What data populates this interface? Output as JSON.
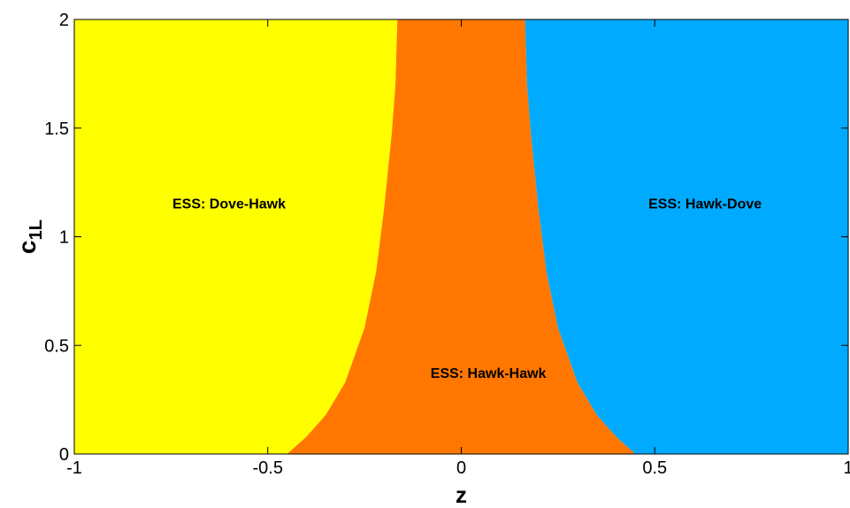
{
  "chart_data": {
    "type": "area",
    "title": "",
    "xlabel": "z",
    "ylabel_main": "c",
    "ylabel_sub": "1L",
    "xlim": [
      -1,
      1
    ],
    "ylim": [
      0,
      2
    ],
    "grid": false,
    "x_ticks": [
      -1,
      -0.5,
      0,
      0.5,
      1
    ],
    "x_tick_labels": [
      "-1",
      "-0.5",
      "0",
      "0.5",
      "1"
    ],
    "y_ticks": [
      0,
      0.5,
      1,
      1.5,
      2
    ],
    "y_tick_labels": [
      "0",
      "0.5",
      "1",
      "1.5",
      "2"
    ],
    "regions": [
      {
        "label": "ESS: Dove-Hawk",
        "color": "#ffff00",
        "label_at": [
          -0.6,
          1.13
        ]
      },
      {
        "label": "ESS: Hawk-Hawk",
        "color": "#ff7700",
        "label_at": [
          0.07,
          0.35
        ]
      },
      {
        "label": "ESS: Hawk-Dove",
        "color": "#00aaff",
        "label_at": [
          0.63,
          1.13
        ]
      }
    ],
    "boundary_right": [
      {
        "z": 0.45,
        "c": 0.0
      },
      {
        "z": 0.4,
        "c": 0.08
      },
      {
        "z": 0.35,
        "c": 0.18
      },
      {
        "z": 0.3,
        "c": 0.33
      },
      {
        "z": 0.25,
        "c": 0.58
      },
      {
        "z": 0.22,
        "c": 0.84
      },
      {
        "z": 0.2,
        "c": 1.12
      },
      {
        "z": 0.18,
        "c": 1.47
      },
      {
        "z": 0.17,
        "c": 1.7
      },
      {
        "z": 0.165,
        "c": 2.0
      }
    ]
  }
}
